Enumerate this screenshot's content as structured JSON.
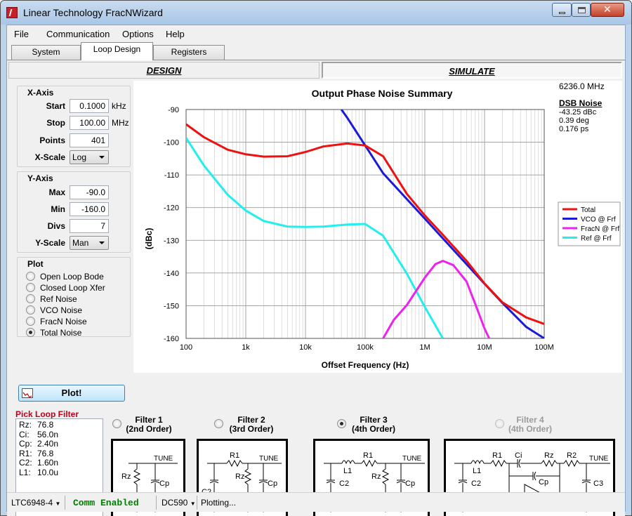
{
  "window": {
    "title": "Linear Technology FracNWizard"
  },
  "menu": [
    "File",
    "Communication",
    "Options",
    "Help"
  ],
  "tabs": [
    "System",
    "Loop Design",
    "Registers"
  ],
  "active_tab": "Loop Design",
  "modes": {
    "design": "DESIGN",
    "simulate": "SIMULATE"
  },
  "xaxis": {
    "title": "X-Axis",
    "start_label": "Start",
    "start_value": "0.1000",
    "start_unit": "kHz",
    "stop_label": "Stop",
    "stop_value": "100.00",
    "stop_unit": "MHz",
    "points_label": "Points",
    "points_value": "401",
    "scale_label": "X-Scale",
    "scale_value": "Log"
  },
  "yaxis": {
    "title": "Y-Axis",
    "max_label": "Max",
    "max_value": "-90.0",
    "min_label": "Min",
    "min_value": "-160.0",
    "divs_label": "Divs",
    "divs_value": "7",
    "scale_label": "Y-Scale",
    "scale_value": "Man"
  },
  "plot": {
    "title": "Plot",
    "options": [
      "Open Loop Bode",
      "Closed Loop Xfer",
      "Ref Noise",
      "VCO Noise",
      "FracN Noise",
      "Total Noise"
    ],
    "selected": "Total Noise",
    "button": "Plot!"
  },
  "info": {
    "freq": "6236.0 MHz",
    "dsb_title": "DSB Noise",
    "dsb_dbc": "-43.25 dBc",
    "dsb_deg": "0.39 deg",
    "dsb_ps": "0.176 ps"
  },
  "chart_data": {
    "type": "line",
    "title": "Output Phase Noise Summary",
    "xlabel": "Offset Frequency (Hz)",
    "ylabel": "(dBc)",
    "xscale": "log",
    "xlim": [
      100,
      100000000
    ],
    "ylim": [
      -160,
      -90
    ],
    "xticks": [
      "100",
      "1k",
      "10k",
      "100k",
      "1M",
      "10M",
      "100M"
    ],
    "yticks": [
      "-90",
      "-100",
      "-110",
      "-120",
      "-130",
      "-140",
      "-150",
      "-160"
    ],
    "grid": true,
    "legend_position": "right",
    "series": [
      {
        "name": "Total",
        "color": "#ee1111",
        "x": [
          100,
          200,
          500,
          1000,
          2000,
          5000,
          10000,
          20000,
          50000,
          100000,
          200000,
          500000,
          1000000,
          2000000,
          5000000,
          10000000,
          20000000,
          50000000,
          100000000
        ],
        "y": [
          -94.5,
          -98.5,
          -102.3,
          -103.7,
          -104.4,
          -104.3,
          -103.0,
          -101.3,
          -100.4,
          -101.0,
          -104.3,
          -115.8,
          -122.4,
          -128.3,
          -136.3,
          -143.2,
          -149.0,
          -153.6,
          -155.6
        ]
      },
      {
        "name": "VCO @ Frf",
        "color": "#1a1ad8",
        "x": [
          40000,
          50000,
          100000,
          200000,
          500000,
          1000000,
          2000000,
          5000000,
          10000000,
          20000000,
          50000000,
          100000000
        ],
        "y": [
          -90,
          -92.5,
          -101.0,
          -109.5,
          -117.4,
          -123.4,
          -129.4,
          -137.3,
          -143.3,
          -149.2,
          -156.5,
          -160.0
        ]
      },
      {
        "name": "FracN @ Frf",
        "color": "#ee22ee",
        "x": [
          200000,
          300000,
          500000,
          1000000,
          1500000,
          2000000,
          3000000,
          5000000,
          7000000,
          10000000,
          12000000
        ],
        "y": [
          -160.0,
          -154.4,
          -149.8,
          -141.4,
          -137.3,
          -136.3,
          -137.6,
          -142.6,
          -149.5,
          -157.0,
          -160.0
        ]
      },
      {
        "name": "Ref @ Frf",
        "color": "#22eeee",
        "x": [
          100,
          200,
          500,
          1000,
          2000,
          5000,
          10000,
          20000,
          50000,
          100000,
          200000,
          500000,
          1000000,
          2000000
        ],
        "y": [
          -98.7,
          -107.2,
          -116.1,
          -120.9,
          -124.1,
          -125.8,
          -125.9,
          -125.8,
          -125.2,
          -125.0,
          -128.6,
          -140.2,
          -150.4,
          -160.0
        ]
      }
    ]
  },
  "filter": {
    "pick_label": "Pick Loop Filter",
    "components": [
      {
        "k": "Rz:",
        "v": "76.8"
      },
      {
        "k": "Ci:",
        "v": "56.0n"
      },
      {
        "k": "Cp:",
        "v": "2.40n"
      },
      {
        "k": "R1:",
        "v": "76.8"
      },
      {
        "k": "C2:",
        "v": "1.60n"
      },
      {
        "k": "L1:",
        "v": "10.0u"
      }
    ],
    "options": [
      {
        "line1": "Filter 1",
        "line2": "(2nd Order)"
      },
      {
        "line1": "Filter 2",
        "line2": "(3rd Order)"
      },
      {
        "line1": "Filter 3",
        "line2": "(4th Order)"
      },
      {
        "line1": "Filter 4",
        "line2": "(4th Order)"
      }
    ],
    "selected": "Filter 3",
    "labels": {
      "tune": "TUNE",
      "rz": "Rz",
      "ci": "Ci",
      "cp": "Cp",
      "r1": "R1",
      "c2": "C2",
      "l1": "L1",
      "r2": "R2",
      "c3": "C3"
    }
  },
  "status": {
    "part": "LTC6948-4",
    "comm": "Comm Enabled",
    "comm_color": "#008000",
    "board": "DC590",
    "message": "Plotting..."
  }
}
